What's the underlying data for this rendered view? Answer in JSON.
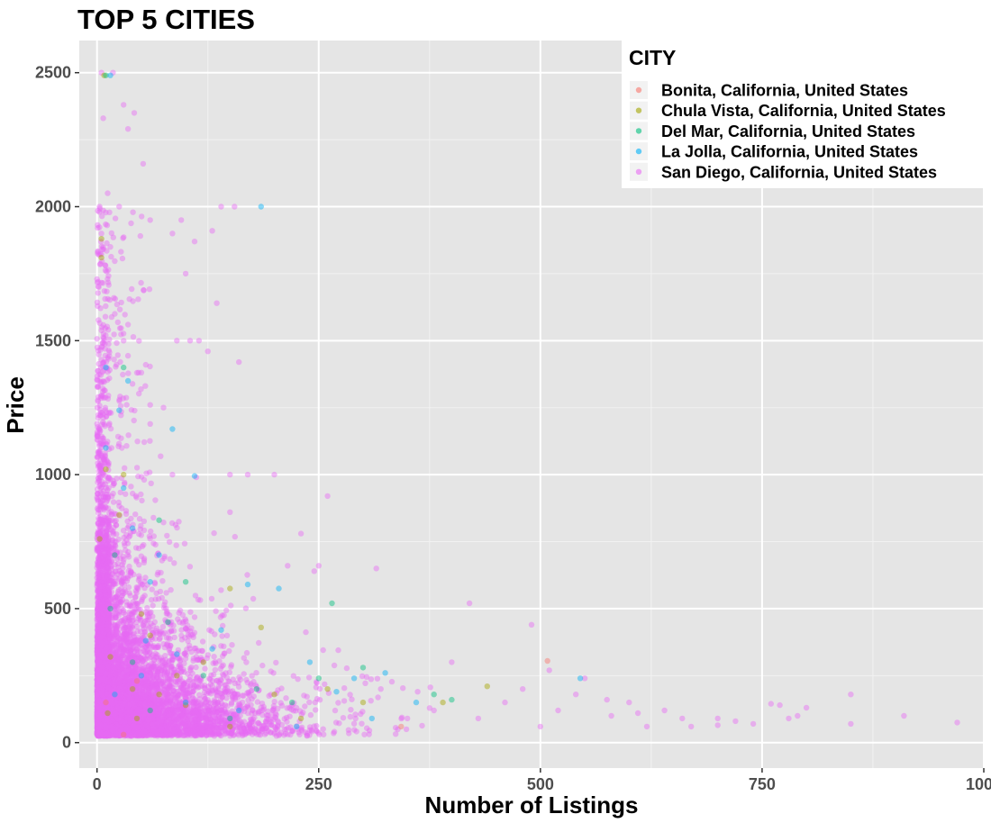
{
  "chart_data": {
    "type": "scatter",
    "title": "TOP 5 CITIES",
    "xlabel": "Number of Listings",
    "ylabel": "Price",
    "xlim": [
      -20,
      1000
    ],
    "ylim": [
      -95,
      2620
    ],
    "x_ticks": [
      0,
      250,
      500,
      750,
      1000
    ],
    "x_tick_labels": [
      "0",
      "250",
      "500",
      "750",
      "1000"
    ],
    "y_ticks": [
      0,
      500,
      1000,
      1500,
      2000,
      2500
    ],
    "y_tick_labels": [
      "0",
      "500",
      "1000",
      "1500",
      "2000",
      "2500"
    ],
    "grid": true,
    "legend": {
      "title": "CITY",
      "placement": "top-right",
      "entries": [
        "Bonita, California, United States",
        "Chula Vista, California, United States",
        "Del Mar, California, United States",
        "La Jolla, California, United States",
        "San Diego, California, United States"
      ]
    },
    "series": [
      {
        "name": "Bonita, California, United States",
        "color": "#F8766D",
        "points": [
          [
            508,
            305
          ],
          [
            343,
            60
          ],
          [
            10,
            150
          ],
          [
            45,
            230
          ],
          [
            30,
            30
          ]
        ]
      },
      {
        "name": "Chula Vista, California, United States",
        "color": "#A3A500",
        "points": [
          [
            5,
            1810
          ],
          [
            8,
            2490
          ],
          [
            150,
            575
          ],
          [
            185,
            430
          ],
          [
            3,
            760
          ],
          [
            15,
            320
          ],
          [
            40,
            200
          ],
          [
            12,
            110
          ],
          [
            25,
            850
          ],
          [
            60,
            400
          ],
          [
            90,
            250
          ],
          [
            120,
            300
          ],
          [
            200,
            180
          ],
          [
            260,
            200
          ],
          [
            300,
            150
          ],
          [
            390,
            150
          ],
          [
            440,
            210
          ],
          [
            10,
            1020
          ],
          [
            70,
            180
          ],
          [
            30,
            1000
          ],
          [
            5,
            1880
          ],
          [
            45,
            90
          ],
          [
            100,
            140
          ],
          [
            150,
            60
          ],
          [
            230,
            90
          ],
          [
            50,
            480
          ]
        ]
      },
      {
        "name": "Del Mar, California, United States",
        "color": "#00BF7D",
        "points": [
          [
            265,
            520
          ],
          [
            10,
            2490
          ],
          [
            20,
            700
          ],
          [
            40,
            300
          ],
          [
            80,
            450
          ],
          [
            120,
            250
          ],
          [
            180,
            200
          ],
          [
            220,
            150
          ],
          [
            300,
            280
          ],
          [
            380,
            180
          ],
          [
            60,
            120
          ],
          [
            150,
            90
          ],
          [
            30,
            1400
          ],
          [
            15,
            500
          ],
          [
            100,
            600
          ],
          [
            250,
            240
          ],
          [
            400,
            160
          ],
          [
            70,
            830
          ]
        ]
      },
      {
        "name": "La Jolla, California, United States",
        "color": "#00B0F6",
        "points": [
          [
            185,
            2000
          ],
          [
            15,
            2490
          ],
          [
            110,
            995
          ],
          [
            85,
            1170
          ],
          [
            25,
            1240
          ],
          [
            205,
            575
          ],
          [
            545,
            240
          ],
          [
            170,
            590
          ],
          [
            240,
            300
          ],
          [
            325,
            260
          ],
          [
            10,
            1400
          ],
          [
            40,
            800
          ],
          [
            60,
            600
          ],
          [
            140,
            420
          ],
          [
            225,
            60
          ],
          [
            20,
            180
          ],
          [
            50,
            250
          ],
          [
            90,
            330
          ],
          [
            270,
            190
          ],
          [
            360,
            150
          ],
          [
            30,
            950
          ],
          [
            70,
            700
          ],
          [
            10,
            1100
          ],
          [
            130,
            350
          ],
          [
            290,
            240
          ],
          [
            100,
            150
          ],
          [
            160,
            120
          ],
          [
            35,
            1350
          ],
          [
            55,
            380
          ],
          [
            310,
            90
          ]
        ]
      },
      {
        "name": "San Diego, California, United States",
        "color": "#E76BF3",
        "dense_points": 9000,
        "points": [
          [
            5,
            2500
          ],
          [
            18,
            2500
          ],
          [
            30,
            2380
          ],
          [
            42,
            2350
          ],
          [
            52,
            2160
          ],
          [
            35,
            2290
          ],
          [
            7,
            2330
          ],
          [
            3,
            2000
          ],
          [
            12,
            2050
          ],
          [
            25,
            2000
          ],
          [
            60,
            1950
          ],
          [
            95,
            1950
          ],
          [
            85,
            1900
          ],
          [
            140,
            2000
          ],
          [
            155,
            2000
          ],
          [
            130,
            1910
          ],
          [
            110,
            1870
          ],
          [
            100,
            1750
          ],
          [
            160,
            1420
          ],
          [
            135,
            1640
          ],
          [
            5,
            1900
          ],
          [
            15,
            1850
          ],
          [
            2,
            1700
          ],
          [
            20,
            1600
          ],
          [
            8,
            1500
          ],
          [
            30,
            1500
          ],
          [
            90,
            1500
          ],
          [
            105,
            1500
          ],
          [
            115,
            1500
          ],
          [
            125,
            1460
          ],
          [
            55,
            1410
          ],
          [
            45,
            1380
          ],
          [
            75,
            1250
          ],
          [
            60,
            1260
          ],
          [
            85,
            1000
          ],
          [
            112,
            990
          ],
          [
            150,
            1000
          ],
          [
            170,
            1000
          ],
          [
            200,
            1000
          ],
          [
            150,
            860
          ],
          [
            230,
            780
          ],
          [
            260,
            920
          ],
          [
            250,
            660
          ],
          [
            245,
            640
          ],
          [
            215,
            660
          ],
          [
            315,
            650
          ],
          [
            420,
            520
          ],
          [
            490,
            440
          ],
          [
            510,
            270
          ],
          [
            550,
            240
          ],
          [
            575,
            160
          ],
          [
            600,
            150
          ],
          [
            610,
            110
          ],
          [
            640,
            120
          ],
          [
            660,
            90
          ],
          [
            700,
            90
          ],
          [
            720,
            80
          ],
          [
            740,
            70
          ],
          [
            760,
            145
          ],
          [
            770,
            140
          ],
          [
            790,
            100
          ],
          [
            800,
            130
          ],
          [
            850,
            180
          ],
          [
            850,
            70
          ],
          [
            910,
            100
          ],
          [
            970,
            75
          ],
          [
            580,
            100
          ],
          [
            620,
            60
          ],
          [
            670,
            60
          ],
          [
            700,
            65
          ],
          [
            780,
            90
          ],
          [
            540,
            180
          ],
          [
            520,
            120
          ],
          [
            480,
            200
          ],
          [
            460,
            150
          ],
          [
            430,
            90
          ],
          [
            500,
            60
          ],
          [
            400,
            300
          ],
          [
            380,
            120
          ],
          [
            350,
            90
          ],
          [
            320,
            200
          ]
        ]
      }
    ]
  }
}
